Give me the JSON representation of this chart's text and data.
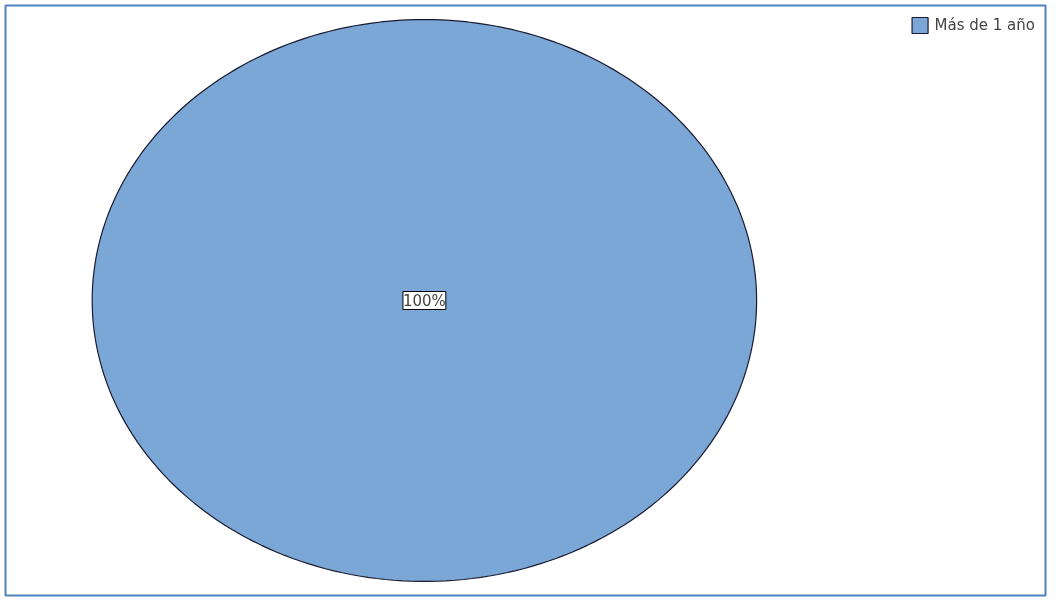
{
  "chart_data": {
    "type": "pie",
    "categories": [
      "Más de 1 año"
    ],
    "values": [
      100
    ],
    "colors": [
      "#7aa7d6"
    ],
    "value_labels": [
      "100%"
    ],
    "legend": "top right"
  }
}
